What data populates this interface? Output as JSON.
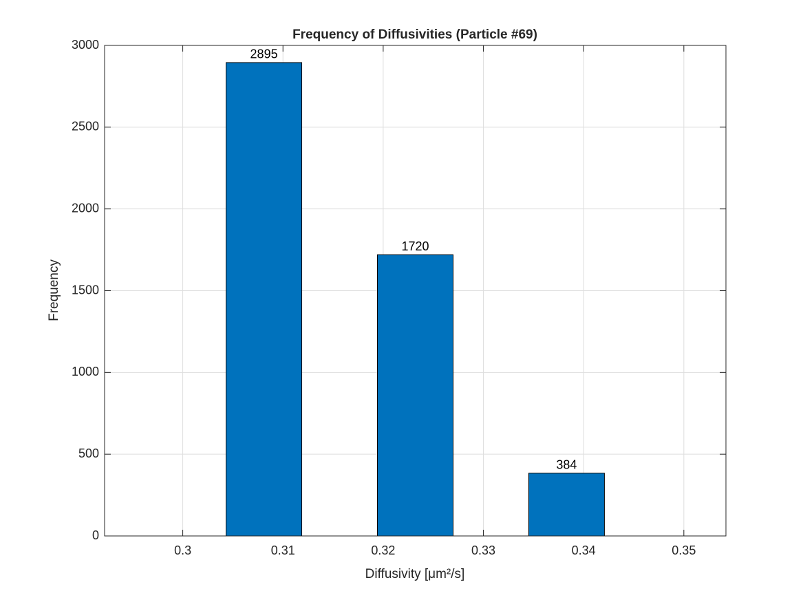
{
  "chart_data": {
    "type": "bar",
    "title": "Frequency of Diffusivities (Particle #69)",
    "x_label": "Diffusivity [μm²/s]",
    "y_label": "Frequency",
    "x": [
      0.3081,
      0.3232,
      0.3383
    ],
    "values": [
      2895,
      1720,
      384
    ],
    "color": "#0072bd",
    "xlim": [
      0.2922,
      0.3542
    ],
    "xticks": [
      0.3,
      0.31,
      0.32,
      0.33,
      0.34,
      0.35
    ],
    "ylim": [
      0,
      3000
    ],
    "yticks": [
      0,
      500,
      1000,
      1500,
      2000,
      2500,
      3000
    ],
    "grid": true
  }
}
